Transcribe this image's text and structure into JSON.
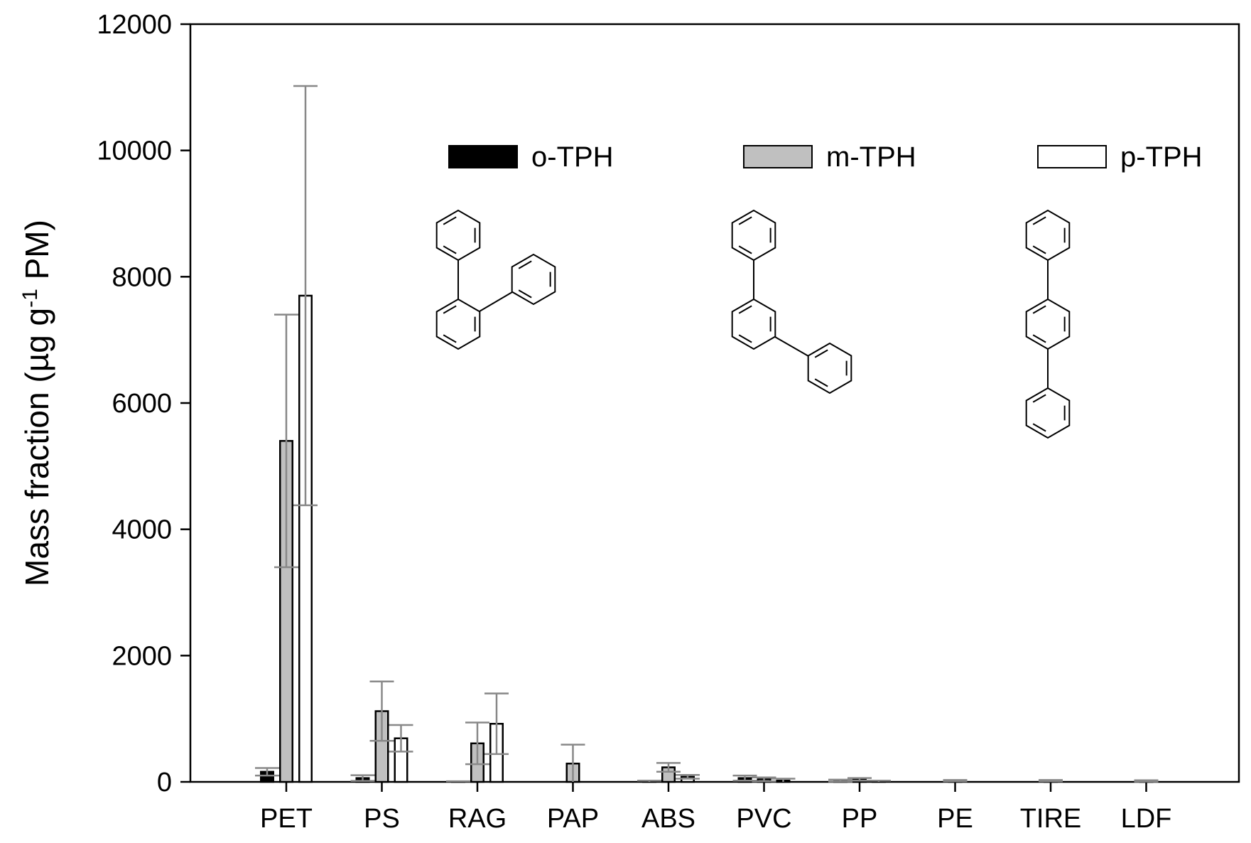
{
  "chart_data": {
    "type": "bar",
    "ylabel": {
      "main": "Mass fraction (µg g",
      "sup": "-1",
      "tail": " PM)"
    },
    "xlabel": "",
    "ylim": [
      0,
      12000
    ],
    "yticks": [
      0,
      2000,
      4000,
      6000,
      8000,
      10000,
      12000
    ],
    "categories": [
      "PET",
      "PS",
      "RAG",
      "PAP",
      "ABS",
      "PVC",
      "PP",
      "PE",
      "TIRE",
      "LDF"
    ],
    "series": [
      {
        "name": "o-TPH",
        "fill": "#000000",
        "values": [
          160,
          60,
          5,
          0,
          10,
          60,
          20,
          0,
          0,
          0
        ],
        "errors": [
          60,
          45,
          5,
          0,
          10,
          40,
          15,
          0,
          0,
          0
        ]
      },
      {
        "name": "m-TPH",
        "fill": "#c0c0c0",
        "values": [
          5400,
          1120,
          610,
          290,
          230,
          40,
          40,
          20,
          20,
          15
        ],
        "errors": [
          2000,
          470,
          330,
          300,
          70,
          30,
          20,
          10,
          10,
          10
        ]
      },
      {
        "name": "p-TPH",
        "fill": "#ffffff",
        "values": [
          7700,
          690,
          920,
          0,
          80,
          20,
          10,
          0,
          0,
          0
        ],
        "errors": [
          3320,
          210,
          480,
          0,
          30,
          30,
          10,
          0,
          0,
          0
        ]
      }
    ],
    "error_bar_color": "#888888",
    "legend_placement": "top"
  }
}
